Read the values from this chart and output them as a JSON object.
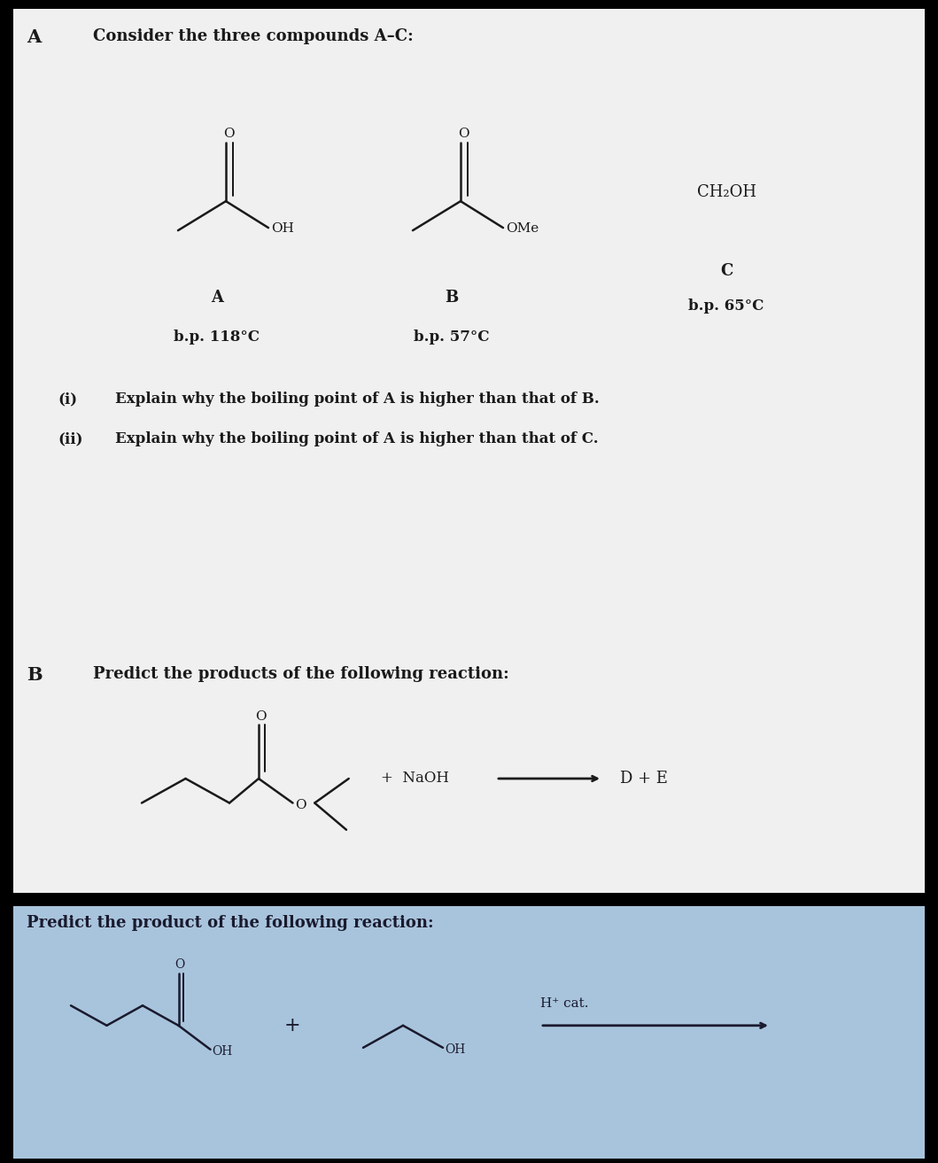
{
  "top_bg": "#ebebeb",
  "bottom_bg": "#a8c8e0",
  "text_color": "#1a1a1a",
  "bottom_text_color": "#1a1a2e",
  "section_A_label": "A",
  "section_B_label": "B",
  "top_title": "Consider the three compounds A–C:",
  "comp_A_label": "A",
  "comp_B_label": "B",
  "comp_C_label": "C",
  "comp_A_bp": "b.p. 118°C",
  "comp_B_bp": "b.p. 57°C",
  "comp_C_bp": "b.p. 65°C",
  "comp_C_formula": "CH₂OH",
  "q_i": "(i)",
  "q_ii": "(ii)",
  "q_i_text": "Explain why the boiling point of A is higher than that of B.",
  "q_ii_text": "Explain why the boiling point of A is higher than that of C.",
  "section_B_text": "Predict the products of the following reaction:",
  "naoh_text": "+  NaOH",
  "de_text": "D + E",
  "bottom_title": "Predict the product of the following reaction:",
  "hcat_text": "H⁺ cat.",
  "lw": 1.8
}
